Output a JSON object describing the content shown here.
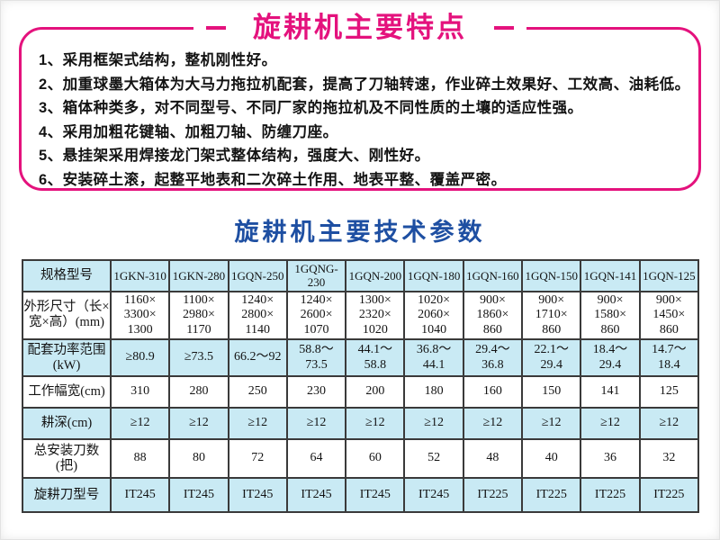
{
  "features": {
    "title": "旋耕机主要特点",
    "items": [
      "1、采用框架式结构，整机刚性好。",
      "2、加重球墨大箱体为大马力拖拉机配套，提高了刀轴转速，作业碎土效果好、工效高、油耗低。",
      "3、箱体种类多，对不同型号、不同厂家的拖拉机及不同性质的土壤的适应性强。",
      "4、采用加粗花键轴、加粗刀轴、防缠刀座。",
      "5、悬挂架采用焊接龙门架式整体结构，强度大、刚性好。",
      "6、安装碎土滚，起整平地表和二次碎土作用、地表平整、覆盖严密。"
    ]
  },
  "specs": {
    "title": "旋耕机主要技术参数",
    "table": {
      "rows": [
        {
          "label": "规格型号",
          "values": [
            "1GKN-310",
            "1GKN-280",
            "1GQN-250",
            "1GQNG-230",
            "1GQN-200",
            "1GQN-180",
            "1GQN-160",
            "1GQN-150",
            "1GQN-141",
            "1GQN-125"
          ]
        },
        {
          "label": "外形尺寸（长×\n宽×高）(mm)",
          "values": [
            "1160×\n3300×\n1300",
            "1100×\n2980×\n1170",
            "1240×\n2800×\n1140",
            "1240×\n2600×\n1070",
            "1300×\n2320×\n1020",
            "1020×\n2060×\n1040",
            "900×\n1860×\n860",
            "900×\n1710×\n860",
            "900×\n1580×\n860",
            "900×\n1450×\n860"
          ]
        },
        {
          "label": "配套功率范围\n(kW)",
          "values": [
            "≥80.9",
            "≥73.5",
            "66.2～92",
            "58.8～\n73.5",
            "44.1～\n58.8",
            "36.8～\n44.1",
            "29.4～\n36.8",
            "22.1～\n29.4",
            "18.4～\n29.4",
            "14.7～\n18.4"
          ]
        },
        {
          "label": "工作幅宽(cm)",
          "values": [
            "310",
            "280",
            "250",
            "230",
            "200",
            "180",
            "160",
            "150",
            "141",
            "125"
          ]
        },
        {
          "label": "耕深(cm)",
          "values": [
            "≥12",
            "≥12",
            "≥12",
            "≥12",
            "≥12",
            "≥12",
            "≥12",
            "≥12",
            "≥12",
            "≥12"
          ]
        },
        {
          "label": "总安装刀数\n(把)",
          "values": [
            "88",
            "80",
            "72",
            "64",
            "60",
            "52",
            "48",
            "40",
            "36",
            "32"
          ]
        },
        {
          "label": "旋耕刀型号",
          "values": [
            "IT245",
            "IT245",
            "IT245",
            "IT245",
            "IT245",
            "IT245",
            "IT225",
            "IT225",
            "IT225",
            "IT225"
          ]
        }
      ]
    }
  },
  "colors": {
    "accent_pink": "#e4127d",
    "title_blue": "#1e4fa2",
    "table_row_blue": "#c9eaf4",
    "table_border": "#3a3a3a"
  }
}
